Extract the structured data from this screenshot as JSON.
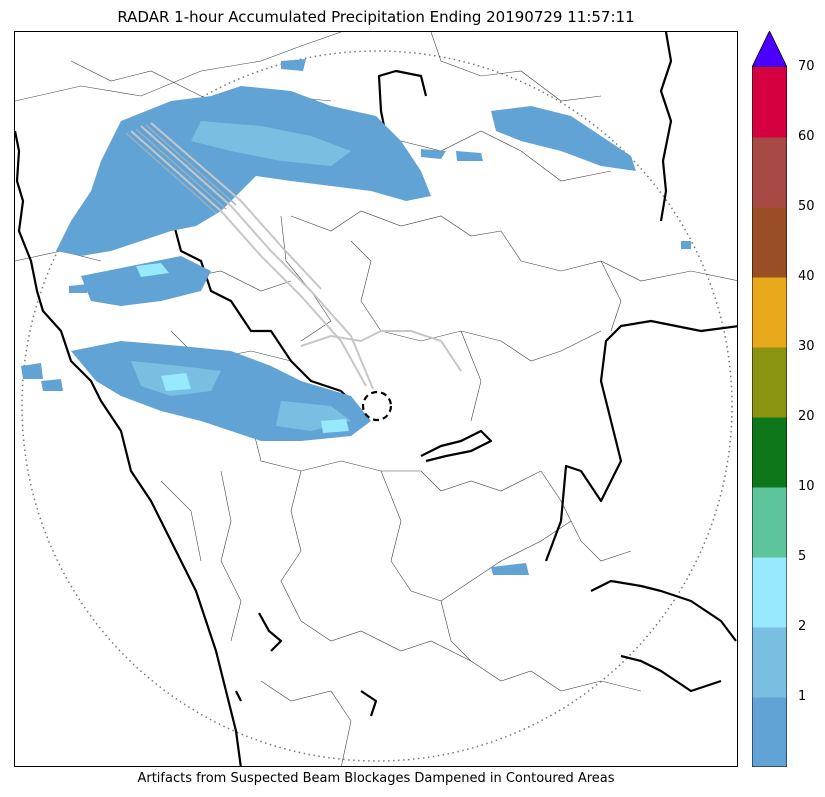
{
  "title": "RADAR 1-hour Accumulated Precipitation Ending 20190729 11:57:11",
  "footer_note": "Artifacts from Suspected Beam Blockages Dampened in Contoured Areas",
  "colorbar": {
    "extend": "max",
    "extend_color": "#4b00ff",
    "levels": [
      {
        "label": "",
        "color": "#62a3d6"
      },
      {
        "label": "1",
        "color": "#79bfe2"
      },
      {
        "label": "2",
        "color": "#97eafe"
      },
      {
        "label": "5",
        "color": "#5ec49c"
      },
      {
        "label": "10",
        "color": "#0e771a"
      },
      {
        "label": "20",
        "color": "#8a9411"
      },
      {
        "label": "30",
        "color": "#e8a91c"
      },
      {
        "label": "40",
        "color": "#9a4e26"
      },
      {
        "label": "50",
        "color": "#a64944"
      },
      {
        "label": "60",
        "color": "#d4003f"
      },
      {
        "label": "70",
        "color": ""
      }
    ]
  },
  "colors": {
    "light_rain": "#62a3d6",
    "medium_rain": "#79bfe2",
    "heavy_rain": "#97eafe",
    "boundary": "#000000",
    "range_ring": "#777777",
    "blockage_contour": "#c6c6c6"
  }
}
